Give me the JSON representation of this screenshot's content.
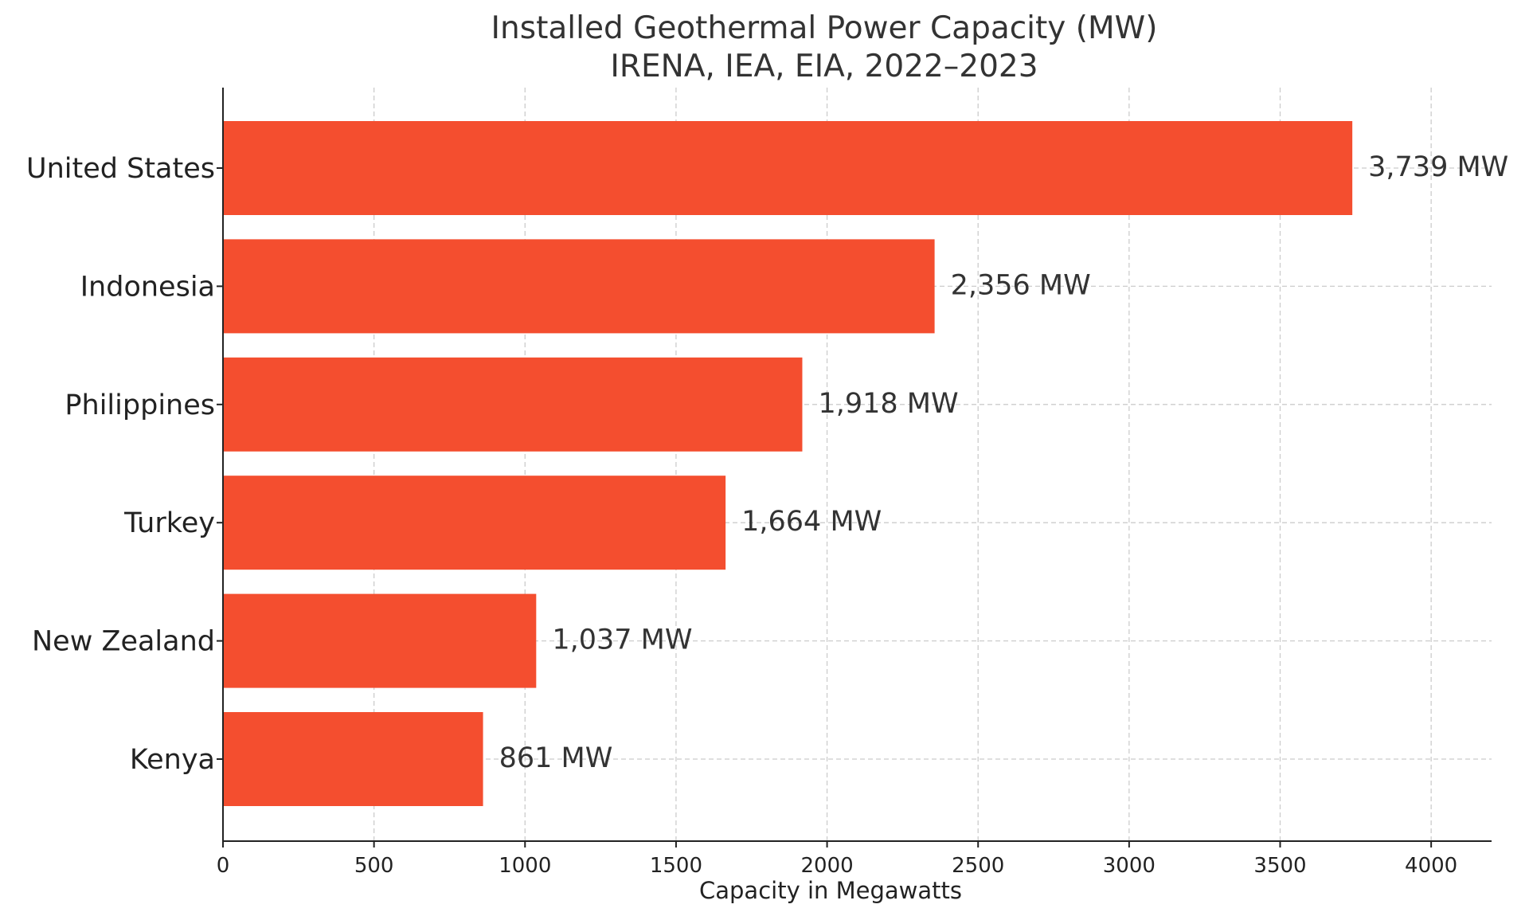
{
  "chart_data": {
    "type": "bar",
    "orientation": "horizontal",
    "title": "Installed Geothermal Power Capacity (MW)",
    "subtitle": "IRENA, IEA, EIA, 2022–2023",
    "xlabel": "Capacity in Megawatts",
    "ylabel": "",
    "categories": [
      "United States",
      "Indonesia",
      "Philippines",
      "Turkey",
      "New Zealand",
      "Kenya"
    ],
    "values": [
      3739,
      2356,
      1918,
      1664,
      1037,
      861
    ],
    "data_labels": [
      "3,739 MW",
      "2,356 MW",
      "1,918 MW",
      "1,664 MW",
      "1,037 MW",
      "861 MW"
    ],
    "xlim": [
      0,
      4200
    ],
    "xticks": [
      0,
      500,
      1000,
      1500,
      2000,
      2500,
      3000,
      3500,
      4000
    ],
    "xtick_labels": [
      "0",
      "500",
      "1000",
      "1500",
      "2000",
      "2500",
      "3000",
      "3500",
      "4000"
    ],
    "grid": true,
    "legend": "none",
    "bar_color": "#f44e2f"
  }
}
